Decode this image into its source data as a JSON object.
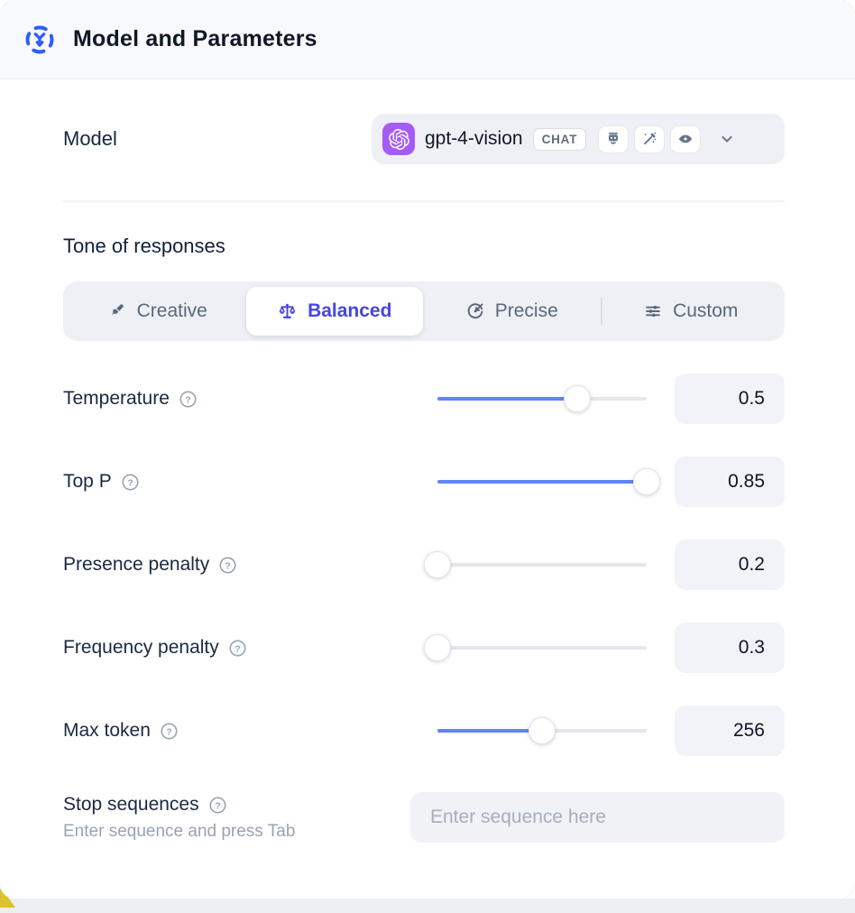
{
  "header": {
    "title": "Model and Parameters",
    "icon": "model-scatter-icon",
    "accent_color": "#2e5bfd"
  },
  "model": {
    "label": "Model",
    "selected_model": "gpt-4-vision",
    "badge": "CHAT",
    "provider_icon": "openai-logo",
    "provider_color": "#a55bf7",
    "capability_icons": [
      "robot-icon",
      "magic-wand-icon",
      "vision-eye-icon"
    ]
  },
  "tone": {
    "heading": "Tone of responses",
    "selected": "Balanced",
    "selected_color": "#4645e0",
    "options": [
      {
        "label": "Creative",
        "icon": "paintbrush-icon"
      },
      {
        "label": "Balanced",
        "icon": "balance-scale-icon"
      },
      {
        "label": "Precise",
        "icon": "target-arrow-icon"
      },
      {
        "label": "Custom",
        "icon": "sliders-icon"
      }
    ]
  },
  "parameters": {
    "slider_color": "#6284fa",
    "rows": [
      {
        "label": "Temperature",
        "value": "0.5",
        "fill_pct": 67
      },
      {
        "label": "Top P",
        "value": "0.85",
        "fill_pct": 100
      },
      {
        "label": "Presence penalty",
        "value": "0.2",
        "fill_pct": 0
      },
      {
        "label": "Frequency penalty",
        "value": "0.3",
        "fill_pct": 0
      },
      {
        "label": "Max token",
        "value": "256",
        "fill_pct": 50
      }
    ]
  },
  "stop_sequences": {
    "label": "Stop sequences",
    "hint": "Enter sequence and press Tab",
    "placeholder": "Enter sequence here"
  }
}
